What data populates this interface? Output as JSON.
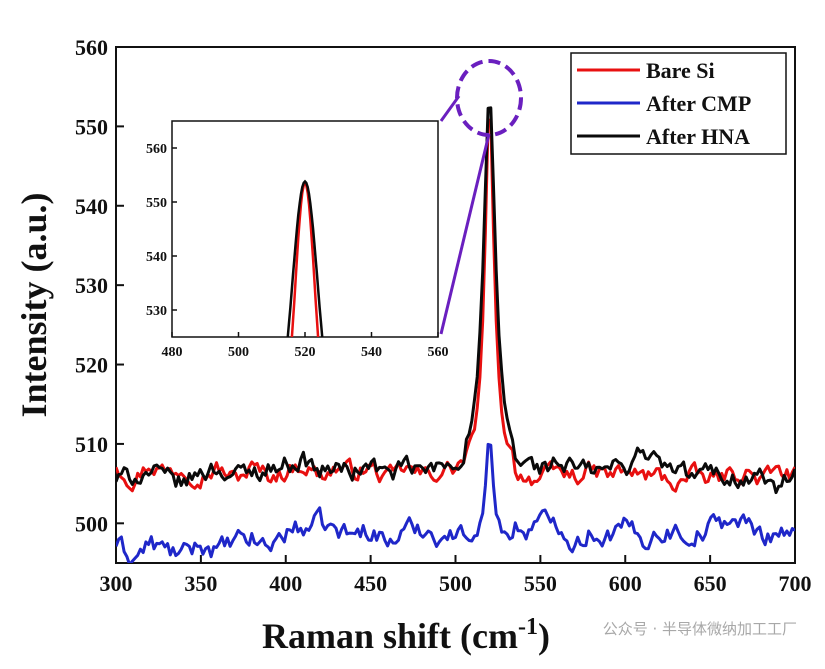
{
  "chart_data": {
    "type": "line",
    "title": "",
    "xlabel": "Raman shift (cm",
    "xlabel_sup": "-1",
    "xlabel_close": ")",
    "ylabel": "Intensity (a.u.)",
    "xlim": [
      300,
      700
    ],
    "ylim": [
      495,
      560
    ],
    "xticks": [
      300,
      350,
      400,
      450,
      500,
      550,
      600,
      650,
      700
    ],
    "yticks": [
      500,
      510,
      520,
      530,
      540,
      550,
      560
    ],
    "legend_position": "top-right",
    "series": [
      {
        "name": "Bare Si",
        "color": "#e81010",
        "baseline": 506.5,
        "peak_center": 520,
        "peak_height": 553.5,
        "peak_width": 3.2,
        "noise_amplitude": 1.2,
        "x": [
          300,
          310,
          320,
          330,
          340,
          350,
          360,
          370,
          380,
          390,
          400,
          410,
          420,
          430,
          440,
          450,
          460,
          470,
          480,
          490,
          500,
          505,
          510,
          515,
          520,
          525,
          530,
          535,
          540,
          550,
          560,
          570,
          580,
          590,
          600,
          610,
          620,
          630,
          640,
          650,
          660,
          670,
          680,
          690,
          700
        ],
        "y": [
          507.5,
          505.5,
          507.5,
          506.5,
          507.0,
          506.0,
          507.0,
          505.5,
          507.0,
          506.0,
          506.5,
          507.5,
          506.0,
          507.0,
          506.5,
          507.0,
          505.5,
          507.0,
          506.0,
          506.5,
          507.0,
          508.0,
          511.0,
          530.0,
          553.5,
          530.0,
          511.0,
          507.0,
          506.0,
          505.5,
          506.5,
          506.0,
          506.5,
          506.0,
          506.5,
          506.0,
          506.0,
          505.0,
          506.0,
          505.5,
          506.0,
          506.5,
          505.5,
          506.5,
          506.0
        ]
      },
      {
        "name": "After CMP",
        "color": "#1f27c9",
        "baseline": 498.0,
        "peak_center": 520,
        "peak_height": 511.0,
        "peak_width": 2.5,
        "noise_amplitude": 1.4,
        "x": [
          300,
          310,
          320,
          330,
          340,
          350,
          360,
          370,
          380,
          390,
          400,
          410,
          420,
          430,
          440,
          450,
          460,
          470,
          480,
          490,
          500,
          505,
          510,
          515,
          520,
          525,
          530,
          535,
          540,
          550,
          560,
          570,
          580,
          590,
          600,
          610,
          620,
          630,
          640,
          650,
          660,
          670,
          680,
          690,
          700
        ],
        "y": [
          497.5,
          495.5,
          497.5,
          496.5,
          496.0,
          497.5,
          496.5,
          497.5,
          498.0,
          497.0,
          499.0,
          499.5,
          500.0,
          499.0,
          498.5,
          499.5,
          497.5,
          499.0,
          499.5,
          498.5,
          498.5,
          498.5,
          499.5,
          503.0,
          511.0,
          503.0,
          499.0,
          499.5,
          499.0,
          500.0,
          500.5,
          497.5,
          499.0,
          498.5,
          499.5,
          498.0,
          499.0,
          499.0,
          498.5,
          499.5,
          500.5,
          500.0,
          498.5,
          499.0,
          499.5
        ]
      },
      {
        "name": "After HNA",
        "color": "#0a0a0a",
        "baseline": 506.5,
        "peak_center": 520,
        "peak_height": 553.8,
        "peak_width": 4.2,
        "noise_amplitude": 1.3,
        "x": [
          300,
          310,
          320,
          330,
          340,
          350,
          360,
          370,
          380,
          390,
          400,
          410,
          420,
          430,
          440,
          450,
          460,
          470,
          480,
          490,
          500,
          505,
          510,
          515,
          520,
          525,
          530,
          535,
          540,
          550,
          560,
          570,
          580,
          590,
          600,
          610,
          620,
          630,
          640,
          650,
          660,
          670,
          680,
          690,
          700
        ],
        "y": [
          505.5,
          506.0,
          506.5,
          505.5,
          505.0,
          506.5,
          507.0,
          506.0,
          506.5,
          507.0,
          507.5,
          508.0,
          506.5,
          507.0,
          506.5,
          507.5,
          506.0,
          507.0,
          506.5,
          507.0,
          507.5,
          509.0,
          514.0,
          534.0,
          553.8,
          534.0,
          514.0,
          508.0,
          507.5,
          507.0,
          507.5,
          507.0,
          506.5,
          507.0,
          507.0,
          509.5,
          507.5,
          506.5,
          506.0,
          506.5,
          506.0,
          505.5,
          506.0,
          504.0,
          506.5
        ]
      }
    ],
    "inset": {
      "xlim": [
        480,
        560
      ],
      "ylim": [
        525,
        565
      ],
      "xticks": [
        480,
        500,
        520,
        540,
        560
      ],
      "yticks": [
        530,
        540,
        550,
        560
      ]
    },
    "annotation": "dashed purple circle around the 520 cm-1 peak, connected by lines to the inset"
  },
  "watermark": "公众号 · 半导体微纳加工工厂"
}
